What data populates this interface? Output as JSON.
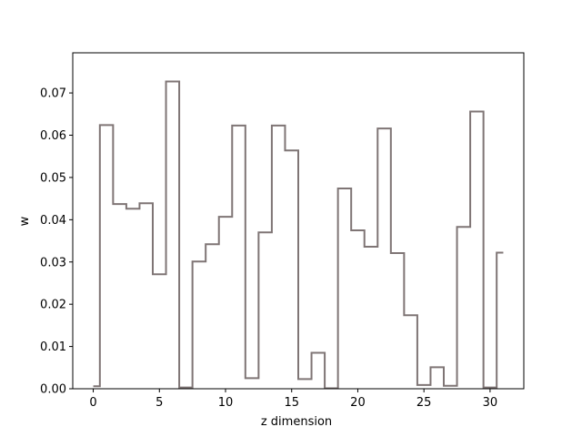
{
  "chart_data": {
    "type": "line",
    "style": "step",
    "title": "",
    "xlabel": "z dimension",
    "ylabel": "w",
    "xlim": [
      -1.55,
      32.55
    ],
    "ylim": [
      0,
      0.0795
    ],
    "xticks": [
      0,
      5,
      10,
      15,
      20,
      25,
      30
    ],
    "yticks": [
      0.0,
      0.01,
      0.02,
      0.03,
      0.04,
      0.05,
      0.06,
      0.07
    ],
    "ytick_labels": [
      "0.00",
      "0.01",
      "0.02",
      "0.03",
      "0.04",
      "0.05",
      "0.06",
      "0.07"
    ],
    "grid": false,
    "line_color": "#7f7575",
    "series": [
      {
        "x": [
          0,
          1,
          2,
          3,
          4,
          5,
          6,
          7,
          8,
          9,
          10,
          11,
          12,
          13,
          14,
          15,
          16,
          17,
          18,
          19,
          20,
          21,
          22,
          23,
          24,
          25,
          26,
          27,
          28,
          29,
          30,
          31
        ],
        "values": [
          0.0006,
          0.0624,
          0.0437,
          0.0426,
          0.0439,
          0.0271,
          0.0727,
          0.0003,
          0.0301,
          0.0342,
          0.0407,
          0.0623,
          0.0025,
          0.037,
          0.0623,
          0.0564,
          0.0023,
          0.0085,
          0.0001,
          0.0474,
          0.0375,
          0.0336,
          0.0616,
          0.0321,
          0.0174,
          0.0009,
          0.0051,
          0.0007,
          0.0383,
          0.0656,
          0.0003,
          0.0322
        ]
      }
    ]
  }
}
